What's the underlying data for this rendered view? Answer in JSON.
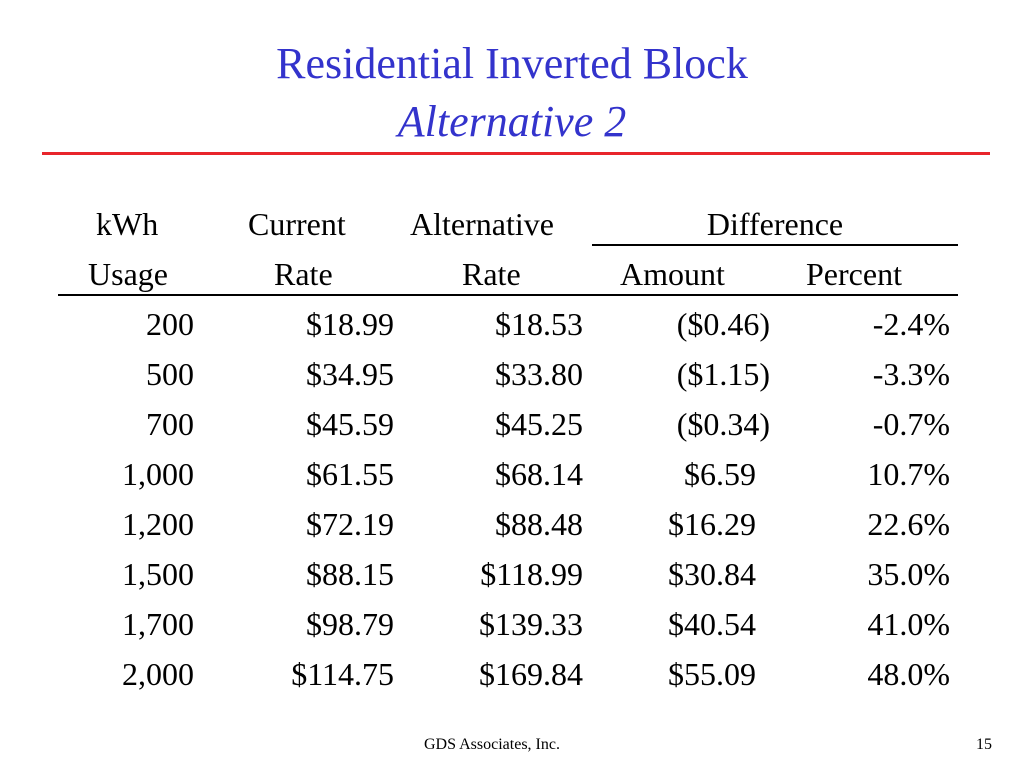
{
  "slide": {
    "title": "Residential Inverted Block",
    "subtitle": "Alternative 2",
    "accent_color": "#3333cc",
    "rule_color": "#e8252b"
  },
  "table": {
    "headers": {
      "kwh_top": "kWh",
      "kwh_bottom": "Usage",
      "current_top": "Current",
      "current_bottom": "Rate",
      "alternative_top": "Alternative",
      "alternative_bottom": "Rate",
      "difference": "Difference",
      "amount": "Amount",
      "percent": "Percent"
    },
    "rows": [
      {
        "kwh": "200",
        "current": "$18.99",
        "alternative": "$18.53",
        "amount": "($0.46)",
        "percent": "-2.4%"
      },
      {
        "kwh": "500",
        "current": "$34.95",
        "alternative": "$33.80",
        "amount": "($1.15)",
        "percent": "-3.3%"
      },
      {
        "kwh": "700",
        "current": "$45.59",
        "alternative": "$45.25",
        "amount": "($0.34)",
        "percent": "-0.7%"
      },
      {
        "kwh": "1,000",
        "current": "$61.55",
        "alternative": "$68.14",
        "amount": "$6.59",
        "percent": "10.7%"
      },
      {
        "kwh": "1,200",
        "current": "$72.19",
        "alternative": "$88.48",
        "amount": "$16.29",
        "percent": "22.6%"
      },
      {
        "kwh": "1,500",
        "current": "$88.15",
        "alternative": "$118.99",
        "amount": "$30.84",
        "percent": "35.0%"
      },
      {
        "kwh": "1,700",
        "current": "$98.79",
        "alternative": "$139.33",
        "amount": "$40.54",
        "percent": "41.0%"
      },
      {
        "kwh": "2,000",
        "current": "$114.75",
        "alternative": "$169.84",
        "amount": "$55.09",
        "percent": "48.0%"
      }
    ]
  },
  "footer": {
    "company": "GDS Associates, Inc.",
    "page_number": "15"
  }
}
